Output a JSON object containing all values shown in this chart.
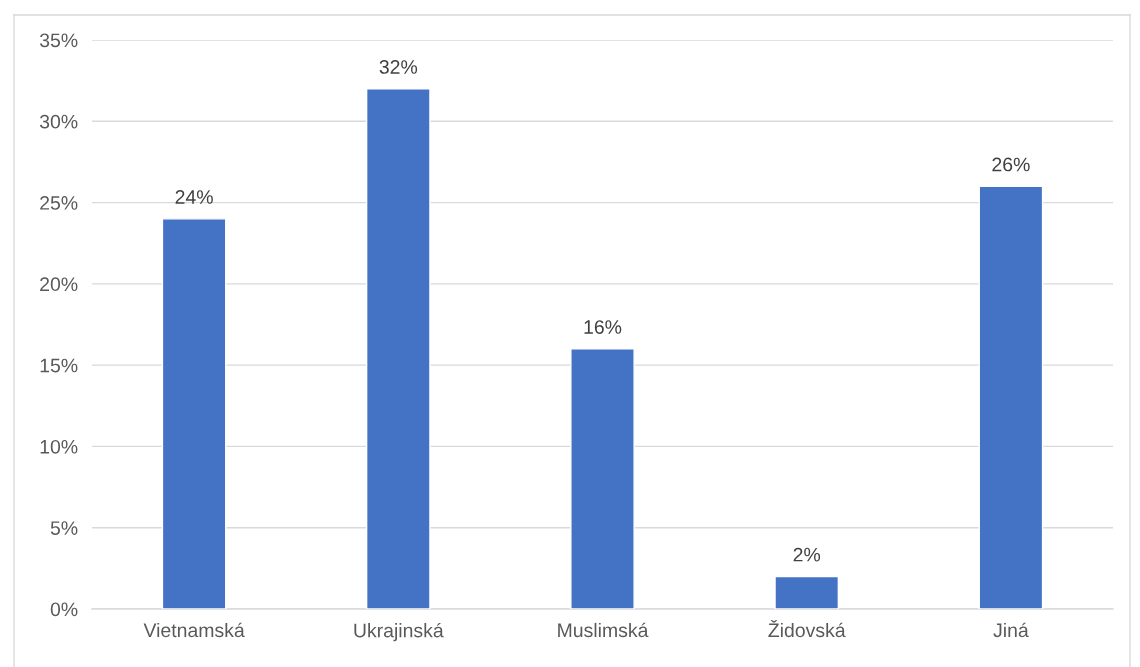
{
  "chart_data": {
    "type": "bar",
    "categories": [
      "Vietnamská",
      "Ukrajinská",
      "Muslimská",
      "Židovská",
      "Jiná"
    ],
    "values": [
      24,
      32,
      16,
      2,
      26
    ],
    "color": "#4472c4",
    "value_labels": [
      "24%",
      "32%",
      "16%",
      "2%",
      "26%"
    ],
    "ylim": [
      0,
      35
    ],
    "yticks": [
      {
        "value": 0,
        "label": "0%"
      },
      {
        "value": 5,
        "label": "5%"
      },
      {
        "value": 10,
        "label": "10%"
      },
      {
        "value": 15,
        "label": "15%"
      },
      {
        "value": 20,
        "label": "20%"
      },
      {
        "value": 25,
        "label": "25%"
      },
      {
        "value": 30,
        "label": "30%"
      },
      {
        "value": 35,
        "label": "35%"
      }
    ],
    "grid": "y",
    "legend": false
  }
}
